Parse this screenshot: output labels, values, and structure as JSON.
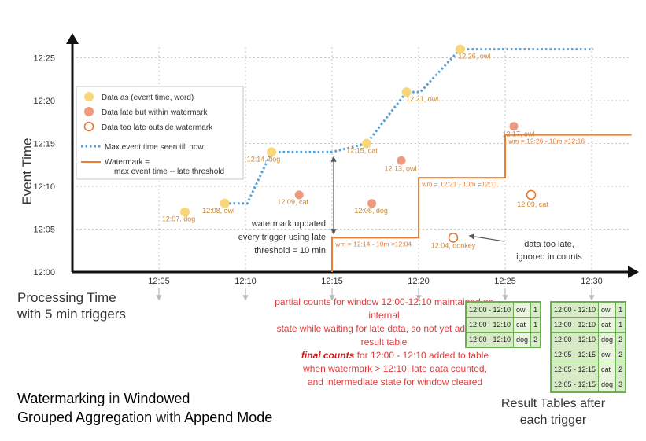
{
  "chart_data": {
    "type": "scatter",
    "xlabel": "Processing Time\nwith 5 min triggers",
    "ylabel": "Event Time",
    "x_ticks": [
      "12:05",
      "12:10",
      "12:15",
      "12:20",
      "12:25",
      "12:30"
    ],
    "y_ticks": [
      "12:00",
      "12:05",
      "12:10",
      "12:15",
      "12:20",
      "12:25"
    ],
    "points": [
      {
        "label": "12:07, dog",
        "x": "12:06.5",
        "y": "12:07",
        "kind": "on-time"
      },
      {
        "label": "12:08, owl",
        "x": "12:08.8",
        "y": "12:08",
        "kind": "on-time"
      },
      {
        "label": "12:14, dog",
        "x": "12:11.5",
        "y": "12:14",
        "kind": "on-time"
      },
      {
        "label": "12:09, cat",
        "x": "12:13.1",
        "y": "12:09",
        "kind": "late-within-watermark"
      },
      {
        "label": "12:15, cat",
        "x": "12:17.0",
        "y": "12:15",
        "kind": "on-time"
      },
      {
        "label": "12:08, dog",
        "x": "12:17.3",
        "y": "12:08",
        "kind": "late-within-watermark"
      },
      {
        "label": "12:13, owl",
        "x": "12:19.0",
        "y": "12:13",
        "kind": "late-within-watermark"
      },
      {
        "label": "12:21, owl",
        "x": "12:19.3",
        "y": "12:21",
        "kind": "on-time"
      },
      {
        "label": "12:04, donkey",
        "x": "12:22.0",
        "y": "12:04",
        "kind": "too-late"
      },
      {
        "label": "12:26, owl",
        "x": "12:22.4",
        "y": "12:26",
        "kind": "on-time"
      },
      {
        "label": "12:17, owl",
        "x": "12:25.5",
        "y": "12:17",
        "kind": "late-within-watermark"
      },
      {
        "label": "12:09, cat",
        "x": "12:26.5",
        "y": "12:09",
        "kind": "too-late"
      }
    ],
    "watermark_labels": [
      "wm = 12:14 - 10m =12:04",
      "wm = 12:21 - 10m =12:11",
      "wm = 12:26 - 10m =12:16"
    ],
    "legend": {
      "items": [
        "Data as (event time, word)",
        "Data late but within watermark",
        "Data too late outside watermark",
        "Max event time seen till now",
        "Watermark =",
        "max event time -- late threshold"
      ]
    },
    "annotations": {
      "watermark_updated": [
        "watermark updated",
        "every trigger using late",
        "threshold = 10 min"
      ],
      "data_too_late": [
        "data too late,",
        "ignored in counts"
      ]
    }
  },
  "notes": {
    "partial": [
      "partial counts for window 12:00-12:10 maintained as internal",
      "state while waiting for late data, so not yet added  to result table"
    ],
    "final_bold": "final counts",
    "final_rest": " for 12:00 - 12:10 added to table",
    "final_lines": [
      "when watermark > 12:10, late data counted,",
      "and intermediate state for window cleared"
    ]
  },
  "processing_time_label": [
    "Processing Time",
    "with 5 min triggers"
  ],
  "title": {
    "w1": "Watermarking",
    "t1": " in ",
    "w2": "Windowed",
    "w3": "Grouped Aggregation",
    "t2": " with ",
    "w4": "Append Mode"
  },
  "result_tables": {
    "caption": [
      "Result Tables after",
      "each trigger"
    ],
    "table1": [
      [
        "12:00 - 12:10",
        "owl",
        "1"
      ],
      [
        "12:00 - 12:10",
        "cat",
        "1"
      ],
      [
        "12:00 - 12:10",
        "dog",
        "2"
      ]
    ],
    "table2": [
      [
        "12:00 - 12:10",
        "owl",
        "1"
      ],
      [
        "12:00 - 12:10",
        "cat",
        "1"
      ],
      [
        "12:00 - 12:10",
        "dog",
        "2"
      ],
      [
        "12:05 - 12:15",
        "owl",
        "2"
      ],
      [
        "12:05 - 12:15",
        "cat",
        "2"
      ],
      [
        "12:05 - 12:15",
        "dog",
        "3"
      ]
    ]
  },
  "colors": {
    "on_time": "#f9d67a",
    "late": "#ef9a7f",
    "too_late_stroke": "#e8702a",
    "watermark": "#ee7d33",
    "max_event": "#4f9fd8",
    "table_fill": "#d6ebc6",
    "table_border": "#6ab04c",
    "note_red": "#e03b3b"
  }
}
